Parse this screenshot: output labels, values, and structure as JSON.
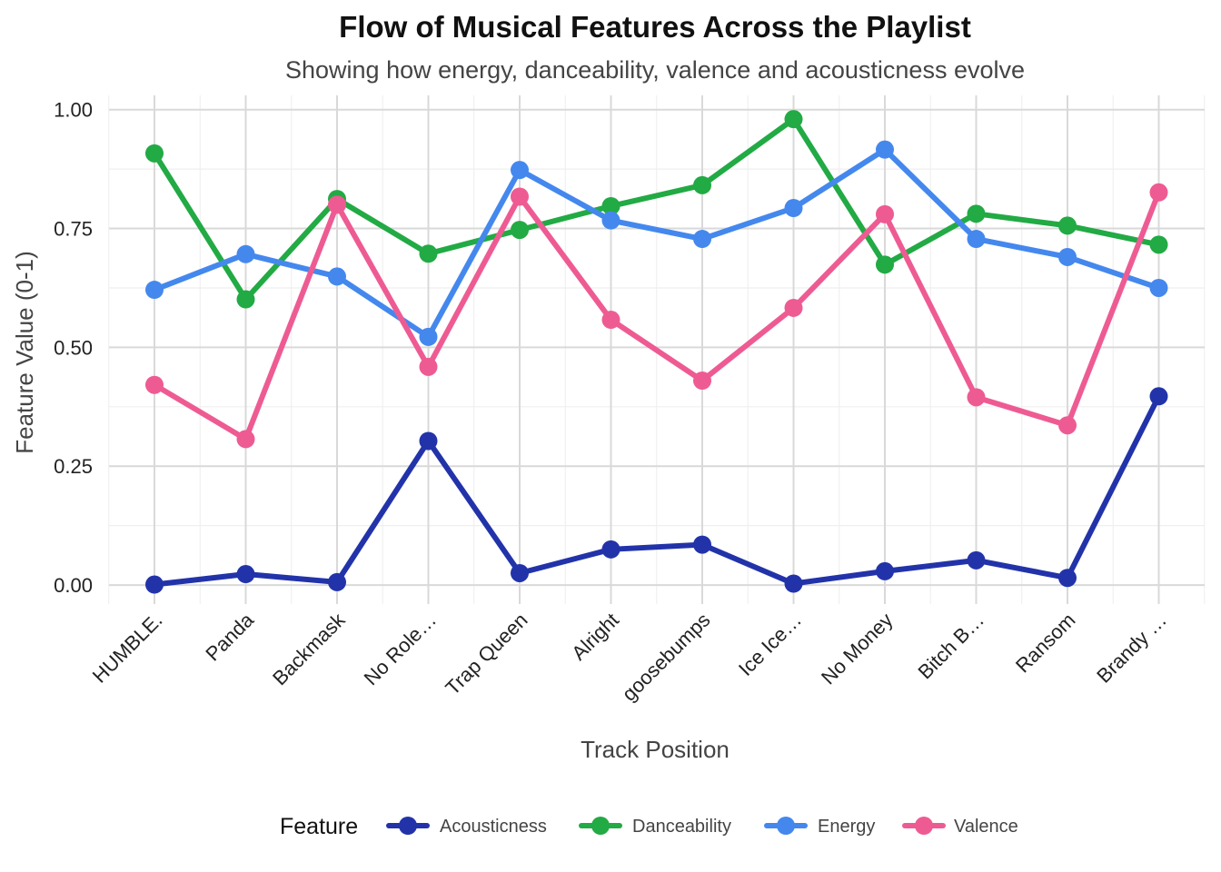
{
  "chart_data": {
    "type": "line",
    "title": "Flow of Musical Features Across the Playlist",
    "subtitle": "Showing how energy, danceability, valence and acousticness evolve",
    "xlabel": "Track Position",
    "ylabel": "Feature Value (0-1)",
    "categories": [
      "HUMBLE.",
      "Panda",
      "Backmask",
      "No Role…",
      "Trap Queen",
      "Alright",
      "goosebumps",
      "Ice Ice…",
      "No Money",
      "Bitch B…",
      "Ransom",
      "Brandy …"
    ],
    "ylim": [
      -0.04,
      1.03
    ],
    "yticks": [
      0,
      0.25,
      0.5,
      0.75,
      1.0
    ],
    "ytick_labels": [
      "0.00",
      "0.25",
      "0.50",
      "0.75",
      "1.00"
    ],
    "grid": true,
    "legend": {
      "title": "Feature",
      "position": "bottom"
    },
    "series": [
      {
        "name": "Acousticness",
        "color": "#2233aa",
        "values": [
          0.001,
          0.023,
          0.006,
          0.303,
          0.025,
          0.075,
          0.085,
          0.003,
          0.029,
          0.052,
          0.015,
          0.397
        ]
      },
      {
        "name": "Danceability",
        "color": "#22aa44",
        "values": [
          0.908,
          0.601,
          0.812,
          0.697,
          0.747,
          0.797,
          0.841,
          0.98,
          0.674,
          0.781,
          0.756,
          0.716
        ]
      },
      {
        "name": "Energy",
        "color": "#4488ee",
        "values": [
          0.621,
          0.696,
          0.649,
          0.522,
          0.873,
          0.767,
          0.728,
          0.793,
          0.916,
          0.728,
          0.69,
          0.625
        ]
      },
      {
        "name": "Valence",
        "color": "#ee5b93",
        "values": [
          0.421,
          0.307,
          0.8,
          0.459,
          0.817,
          0.558,
          0.43,
          0.583,
          0.78,
          0.395,
          0.336,
          0.826
        ]
      }
    ]
  }
}
